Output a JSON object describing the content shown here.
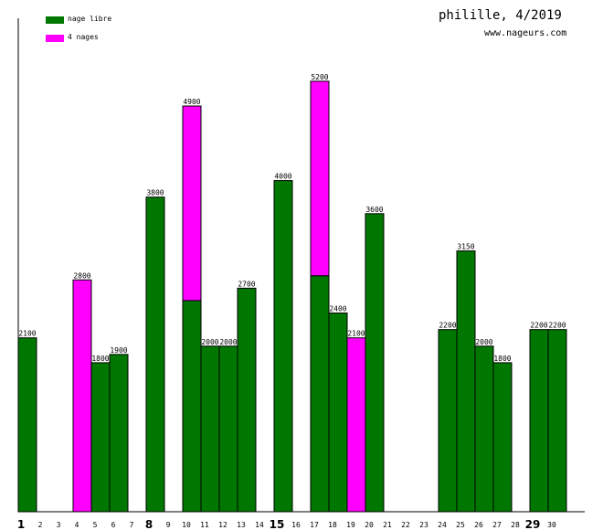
{
  "header": {
    "title": "philille, 4/2019",
    "subtitle": "www.nageurs.com"
  },
  "colors": {
    "nage_libre": "#007700",
    "quatre_nages": "#ff00ff",
    "axis": "#000000"
  },
  "chart_data": {
    "type": "bar",
    "stacked": true,
    "categories": [
      "1",
      "2",
      "3",
      "4",
      "5",
      "6",
      "7",
      "8",
      "9",
      "10",
      "11",
      "12",
      "13",
      "14",
      "15",
      "16",
      "17",
      "18",
      "19",
      "20",
      "21",
      "22",
      "23",
      "24",
      "25",
      "26",
      "27",
      "28",
      "29",
      "30"
    ],
    "bold_categories": [
      "1",
      "8",
      "15",
      "29"
    ],
    "series": [
      {
        "name": "nage libre",
        "values": [
          2100,
          0,
          0,
          0,
          1800,
          1900,
          0,
          3800,
          0,
          2550,
          2000,
          2000,
          2700,
          0,
          4000,
          0,
          2850,
          2400,
          0,
          3600,
          0,
          0,
          0,
          2200,
          3150,
          2000,
          1800,
          0,
          2200,
          2200
        ]
      },
      {
        "name": "4 nages",
        "values": [
          0,
          0,
          0,
          2800,
          0,
          0,
          0,
          0,
          0,
          2350,
          0,
          0,
          0,
          0,
          0,
          0,
          2350,
          0,
          2100,
          0,
          0,
          0,
          0,
          0,
          0,
          0,
          0,
          0,
          0,
          0
        ]
      }
    ],
    "totals": [
      2100,
      0,
      0,
      2800,
      1800,
      1900,
      0,
      3800,
      0,
      4900,
      2000,
      2000,
      2700,
      0,
      4000,
      0,
      5200,
      2400,
      2100,
      3600,
      0,
      0,
      0,
      2200,
      3150,
      2000,
      1800,
      0,
      2200,
      2200
    ],
    "ylim": [
      0,
      5960
    ],
    "grid": false,
    "legend": "top-left"
  }
}
